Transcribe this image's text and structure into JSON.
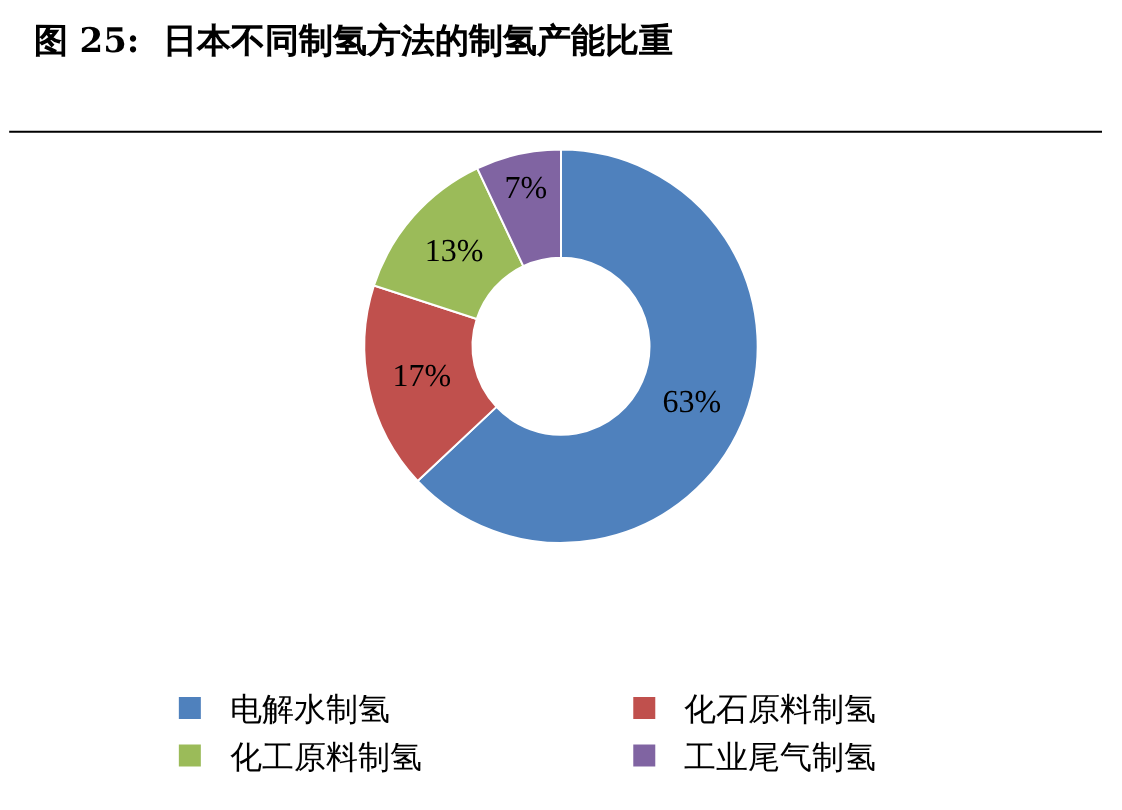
{
  "chart_data": {
    "type": "donut",
    "title": "图 25:  日本不同制氢方法的制氢产能比重",
    "categories": [
      "电解水制氢",
      "化石原料制氢",
      "化工原料制氢",
      "工业尾气制氢"
    ],
    "values": [
      63,
      17,
      13,
      7
    ],
    "value_labels": [
      "63%",
      "17%",
      "13%",
      "7%"
    ],
    "colors": [
      "#4f81bd",
      "#c0504d",
      "#9bbb59",
      "#8064a2"
    ],
    "legend": "bottom"
  }
}
